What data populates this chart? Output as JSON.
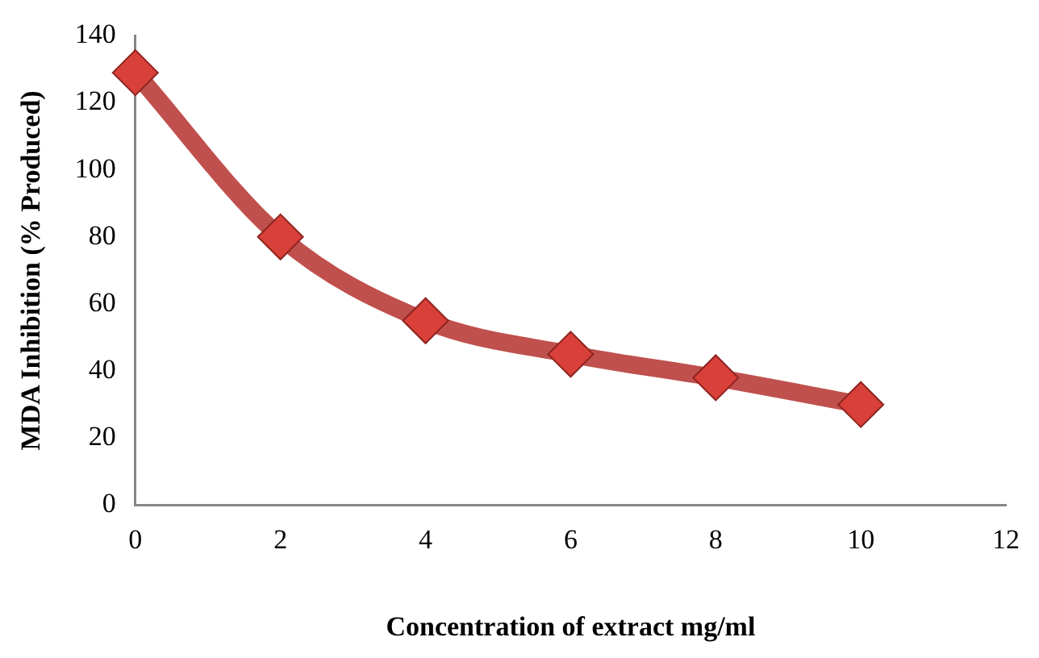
{
  "chart_data": {
    "type": "line",
    "xlabel": "Concentration of extract mg/ml",
    "ylabel": "MDA Inhibition (% Produced)",
    "x": [
      0,
      2,
      4,
      6,
      8,
      10
    ],
    "series": [
      {
        "color": "#c0504d",
        "values": [
          129,
          80,
          55,
          45,
          38,
          30
        ]
      }
    ],
    "xlim": [
      0,
      12
    ],
    "xticks": [
      0,
      2,
      4,
      6,
      8,
      10,
      12
    ],
    "ylim": [
      0,
      140
    ],
    "yticks": [
      0,
      20,
      40,
      60,
      80,
      100,
      120,
      140
    ],
    "grid": false,
    "legend": false,
    "marker": "diamond",
    "line_style": "solid"
  }
}
